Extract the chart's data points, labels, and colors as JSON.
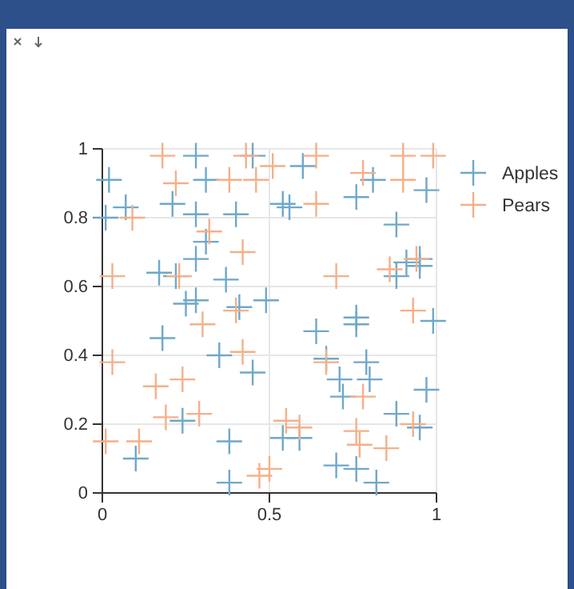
{
  "chart_data": {
    "type": "scatter",
    "marker": "cross",
    "grid": true,
    "legend": "top right",
    "xlim": [
      0,
      1
    ],
    "xticks": [
      0,
      0.5,
      1
    ],
    "ylim": [
      0,
      1
    ],
    "yticks": [
      0,
      0.2,
      0.4,
      0.6,
      0.8,
      1
    ],
    "series": [
      {
        "name": "Apples",
        "color": "#6fa8c9",
        "x": [
          0.02,
          0.07,
          0.21,
          0.28,
          0.31,
          0.28,
          0.4,
          0.31,
          0.28,
          0.17,
          0.22,
          0.37,
          0.25,
          0.28,
          0.41,
          0.45,
          0.49,
          0.01,
          0.6,
          0.81,
          0.76,
          0.97,
          0.54,
          0.56,
          0.88,
          0.91,
          0.95,
          0.95,
          0.88,
          0.76,
          0.18,
          0.35,
          0.45,
          0.24,
          0.1,
          0.38,
          0.38,
          0.64,
          0.76,
          0.99,
          0.67,
          0.79,
          0.71,
          0.8,
          0.72,
          0.97,
          0.88,
          0.54,
          0.59,
          0.95,
          0.7,
          0.76,
          0.82
        ],
        "values": [
          0.91,
          0.83,
          0.84,
          0.98,
          0.91,
          0.81,
          0.81,
          0.73,
          0.68,
          0.64,
          0.63,
          0.62,
          0.55,
          0.56,
          0.54,
          0.98,
          0.56,
          0.8,
          0.95,
          0.91,
          0.86,
          0.88,
          0.84,
          0.83,
          0.78,
          0.67,
          0.68,
          0.66,
          0.63,
          0.51,
          0.45,
          0.4,
          0.35,
          0.21,
          0.1,
          0.15,
          0.03,
          0.47,
          0.49,
          0.5,
          0.39,
          0.38,
          0.33,
          0.33,
          0.28,
          0.3,
          0.23,
          0.16,
          0.16,
          0.19,
          0.08,
          0.07,
          0.03
        ]
      },
      {
        "name": "Pears",
        "color": "#f4b088",
        "x": [
          0.18,
          0.43,
          0.22,
          0.38,
          0.46,
          0.09,
          0.32,
          0.42,
          0.03,
          0.23,
          0.4,
          0.51,
          0.64,
          0.9,
          0.99,
          0.78,
          0.9,
          0.64,
          0.7,
          0.86,
          0.94,
          0.93,
          0.3,
          0.03,
          0.16,
          0.24,
          0.42,
          0.19,
          0.29,
          0.01,
          0.11,
          0.47,
          0.67,
          0.78,
          0.55,
          0.59,
          0.76,
          0.77,
          0.85,
          0.93,
          0.5
        ],
        "values": [
          0.98,
          0.98,
          0.9,
          0.91,
          0.91,
          0.8,
          0.76,
          0.7,
          0.63,
          0.63,
          0.53,
          0.95,
          0.98,
          0.98,
          0.98,
          0.93,
          0.91,
          0.84,
          0.63,
          0.65,
          0.68,
          0.53,
          0.49,
          0.38,
          0.31,
          0.33,
          0.41,
          0.22,
          0.23,
          0.15,
          0.15,
          0.05,
          0.38,
          0.28,
          0.21,
          0.19,
          0.18,
          0.14,
          0.13,
          0.2,
          0.07
        ]
      }
    ]
  }
}
